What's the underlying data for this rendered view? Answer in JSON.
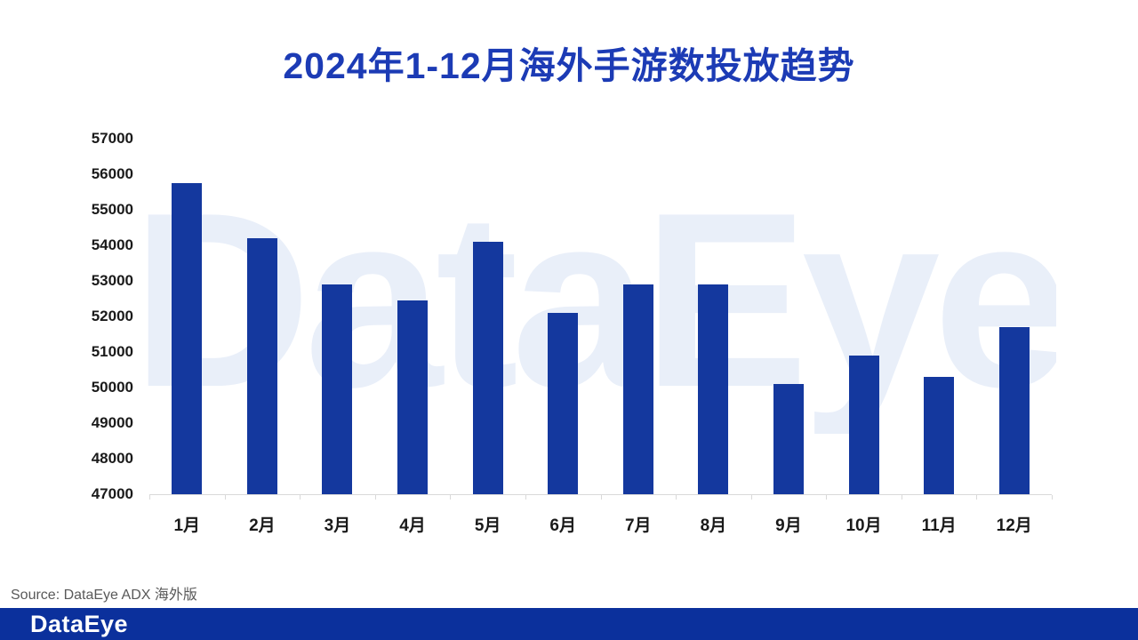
{
  "title": "2024年1-12月海外手游数投放趋势",
  "watermark_text": "DataEye",
  "source_note": "Source: DataEye ADX 海外版",
  "footer": {
    "logo_text": "DataEye"
  },
  "colors": {
    "title": "#1C3BB5",
    "bar": "#14389E",
    "footer_bg": "#0B309C",
    "axis_line": "#D9D9D9",
    "axis_label": "#1A1A1A",
    "source_text": "#595959",
    "watermark": "#E9EFF9"
  },
  "chart_data": {
    "type": "bar",
    "title": "2024年1-12月海外手游数投放趋势",
    "categories": [
      "1月",
      "2月",
      "3月",
      "4月",
      "5月",
      "6月",
      "7月",
      "8月",
      "9月",
      "10月",
      "11月",
      "12月"
    ],
    "values": [
      55750,
      54200,
      52900,
      52450,
      54100,
      52100,
      52900,
      52900,
      50100,
      50900,
      50300,
      51700
    ],
    "xlabel": "",
    "ylabel": "",
    "ylim": [
      47000,
      57000
    ],
    "ytick_step": 1000,
    "grid": false,
    "legend": false,
    "bar_color": "#14389E"
  }
}
